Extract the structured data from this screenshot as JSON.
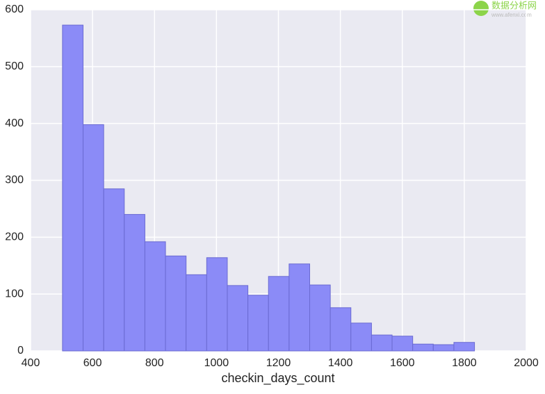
{
  "chart_data": {
    "type": "histogram",
    "xlabel": "checkin_days_count",
    "bins": [
      503,
      569.5,
      636,
      702.5,
      769,
      835.5,
      902,
      968.5,
      1035,
      1101.5,
      1168,
      1234.5,
      1301,
      1367.5,
      1434,
      1500.5,
      1567,
      1633.5,
      1700,
      1766.5,
      1833
    ],
    "counts": [
      573,
      398,
      285,
      240,
      192,
      167,
      134,
      164,
      115,
      98,
      131,
      153,
      116,
      76,
      49,
      28,
      26,
      12,
      11,
      15
    ],
    "color": "#8b8bf7",
    "xlim": [
      400,
      2000
    ],
    "xticks": [
      400,
      600,
      800,
      1000,
      1200,
      1400,
      1600,
      1800,
      2000
    ],
    "ylim": [
      0,
      600
    ],
    "yticks": [
      0,
      100,
      200,
      300,
      400,
      500,
      600
    ],
    "grid": true
  },
  "watermark": {
    "name": "数据分析网",
    "url": "www.afenxi.com"
  }
}
